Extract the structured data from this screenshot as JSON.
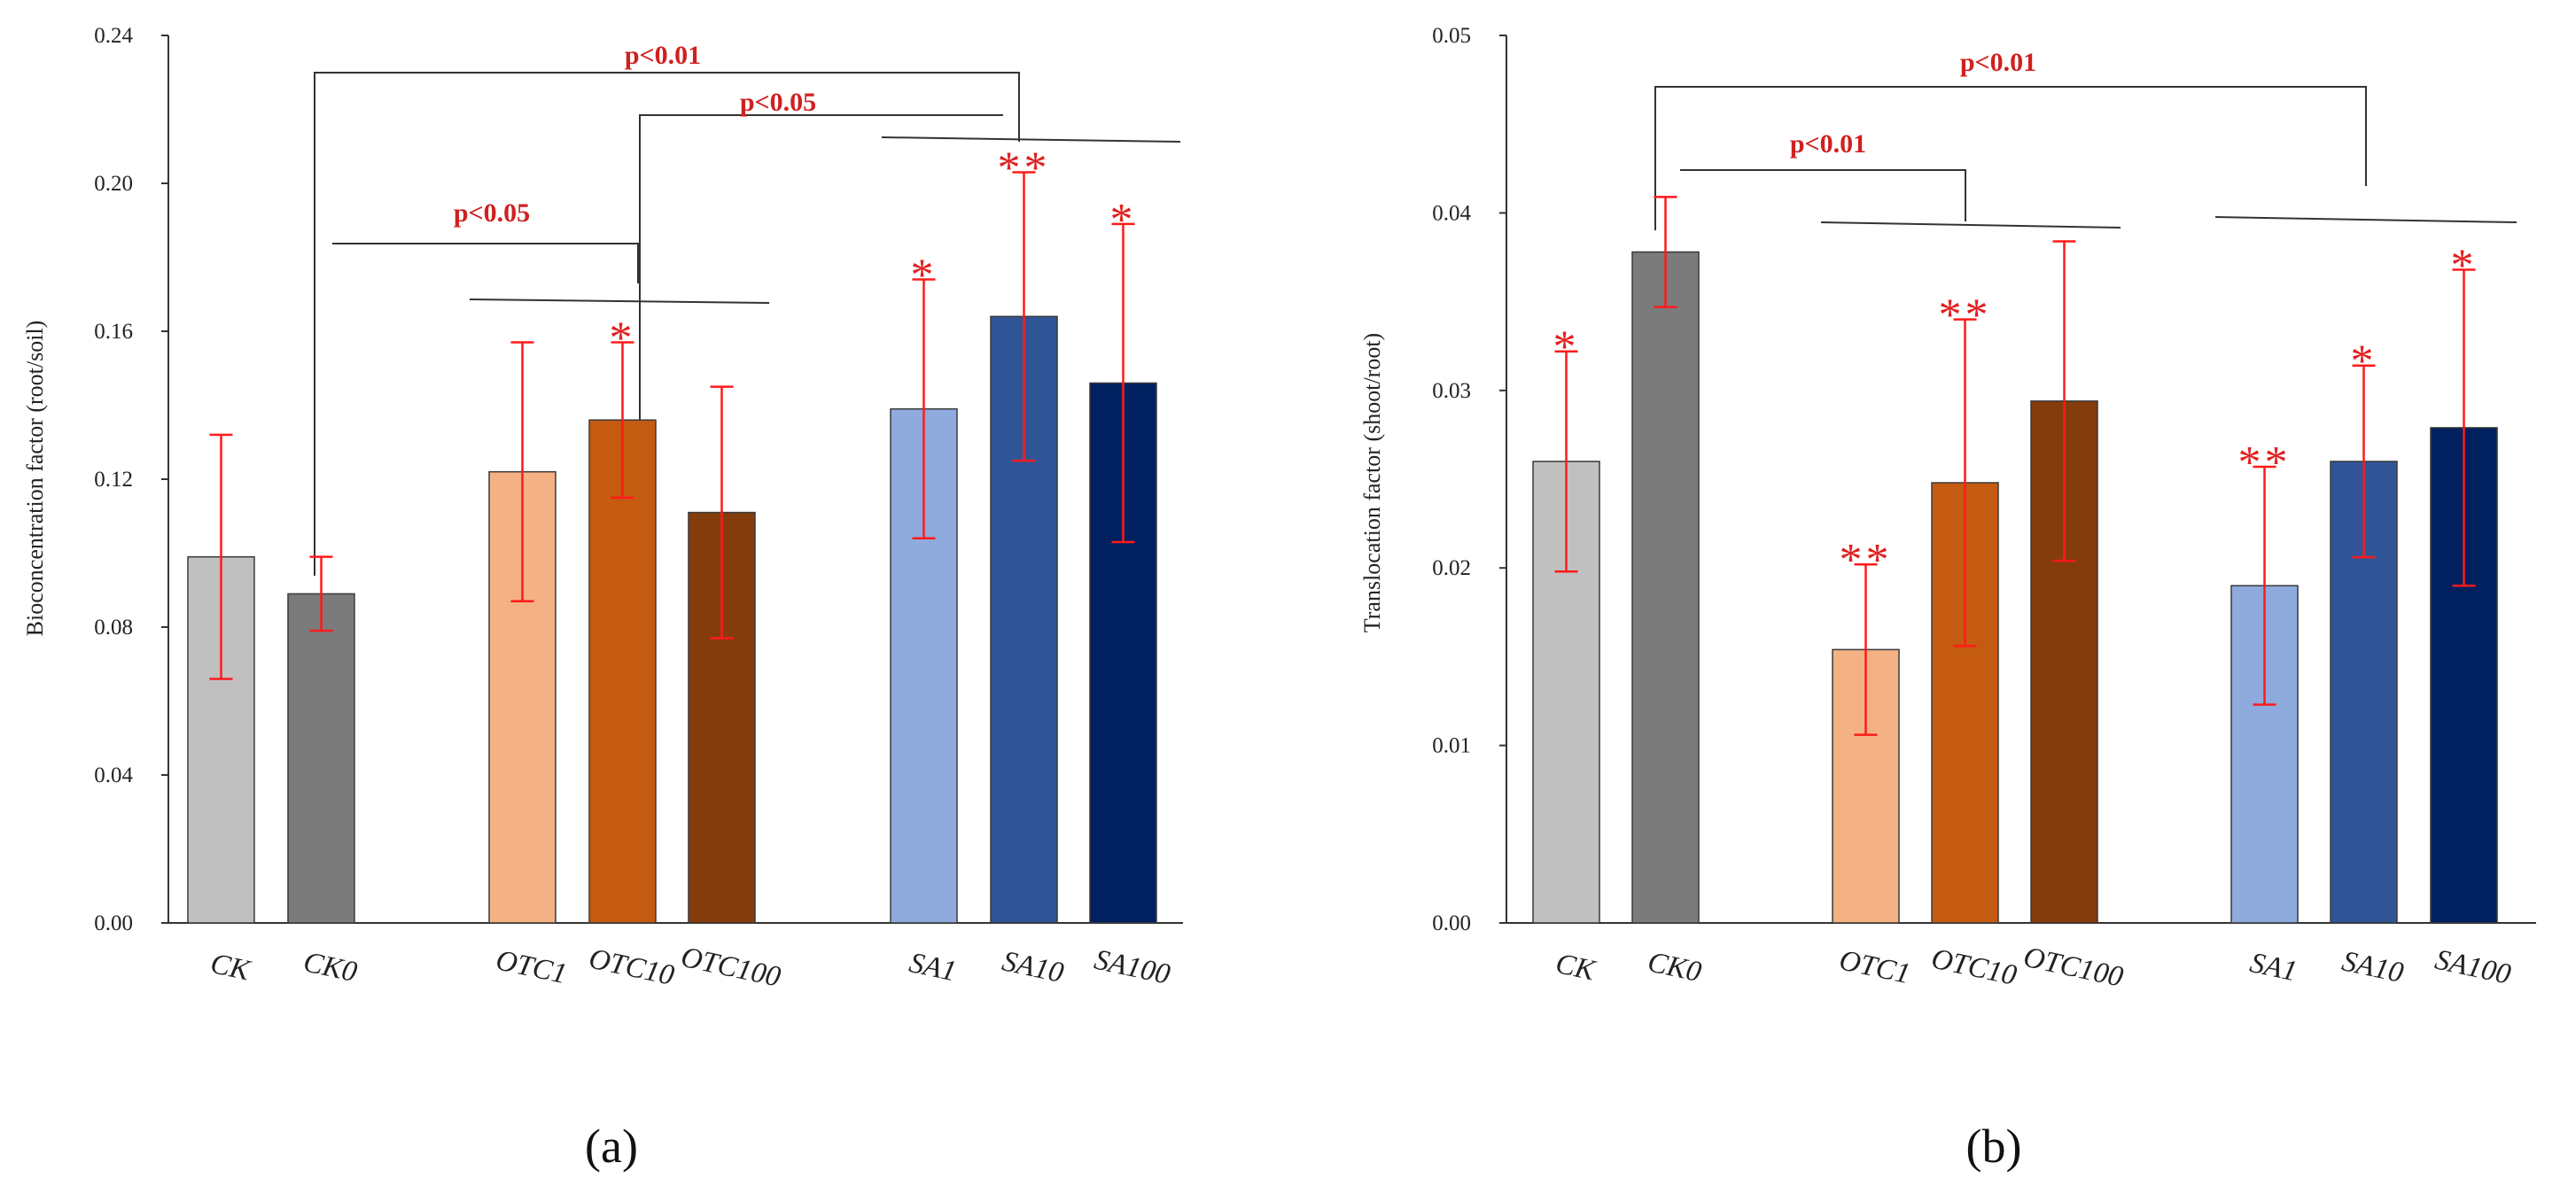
{
  "chart_data": [
    {
      "type": "bar",
      "panel_label": "(a)",
      "ylabel": "Bioconcentration factor (root/soil)",
      "ylim": [
        0,
        0.24
      ],
      "yticks": [
        "0.00",
        "0.04",
        "0.08",
        "0.12",
        "0.16",
        "0.20",
        "0.24"
      ],
      "categories": [
        "CK",
        "CK0",
        "OTC1",
        "OTC10",
        "OTC100",
        "SA1",
        "SA10",
        "SA100"
      ],
      "values": [
        0.099,
        0.089,
        0.122,
        0.136,
        0.111,
        0.139,
        0.164,
        0.146
      ],
      "errors": [
        0.033,
        0.01,
        0.035,
        0.021,
        0.034,
        0.035,
        0.039,
        0.043
      ],
      "significance": [
        "",
        "",
        "",
        "*",
        "",
        "*",
        "**",
        "*"
      ],
      "colors": [
        "#c0c0c0",
        "#7b7b7b",
        "#f4b183",
        "#c55a11",
        "#843c0c",
        "#8faadc",
        "#2f5597",
        "#002060"
      ],
      "comparisons": [
        {
          "label": "p<0.05",
          "from": "CK0",
          "to": [
            "OTC1",
            "OTC10",
            "OTC100"
          ]
        },
        {
          "label": "p<0.05",
          "from": "OTC10",
          "to": [
            "SA1",
            "SA10",
            "SA100"
          ]
        },
        {
          "label": "p<0.01",
          "from": "CK0",
          "to": [
            "SA1",
            "SA10",
            "SA100"
          ]
        }
      ]
    },
    {
      "type": "bar",
      "panel_label": "(b)",
      "ylabel": "Translocation factor (shoot/root)",
      "ylim": [
        0,
        0.05
      ],
      "yticks": [
        "0.00",
        "0.01",
        "0.02",
        "0.03",
        "0.04",
        "0.05"
      ],
      "categories": [
        "CK",
        "CK0",
        "OTC1",
        "OTC10",
        "OTC100",
        "SA1",
        "SA10",
        "SA100"
      ],
      "values": [
        0.026,
        0.0378,
        0.0154,
        0.0248,
        0.0294,
        0.019,
        0.026,
        0.0279
      ],
      "errors": [
        0.0062,
        0.0031,
        0.0048,
        0.0092,
        0.009,
        0.0067,
        0.0054,
        0.0089
      ],
      "significance": [
        "*",
        "",
        "**",
        "**",
        "",
        "**",
        "*",
        "*"
      ],
      "colors": [
        "#c0c0c0",
        "#7b7b7b",
        "#f4b183",
        "#c55a11",
        "#843c0c",
        "#8faadc",
        "#2f5597",
        "#002060"
      ],
      "comparisons": [
        {
          "label": "p<0.01",
          "from": "CK0",
          "to": [
            "OTC1",
            "OTC10",
            "OTC100"
          ]
        },
        {
          "label": "p<0.01",
          "from": "CK0",
          "to": [
            "SA1",
            "SA10",
            "SA100"
          ]
        }
      ]
    }
  ]
}
